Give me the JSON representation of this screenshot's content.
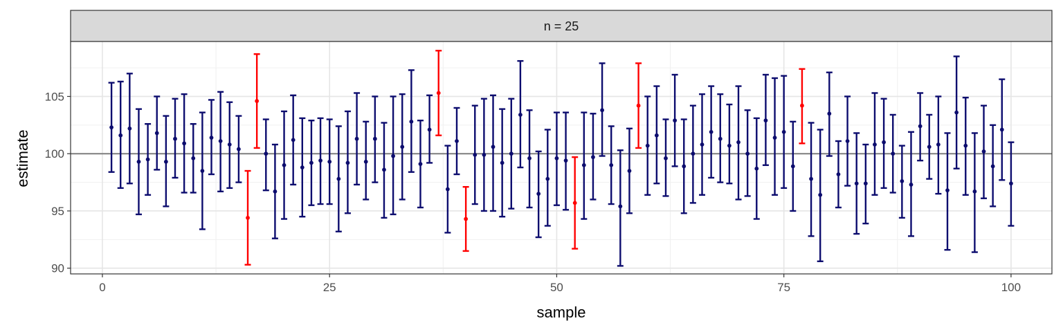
{
  "chart_data": {
    "type": "scatter",
    "subtype": "errorbar",
    "facet_label": "n = 25",
    "xlabel": "sample",
    "ylabel": "estimate",
    "xlim": [
      -3.5,
      104.5
    ],
    "ylim": [
      89.5,
      109.8
    ],
    "x_ticks": [
      0,
      25,
      50,
      75,
      100
    ],
    "y_ticks": [
      90,
      95,
      100,
      105
    ],
    "reference_line": 100,
    "grid": true,
    "colors": {
      "covers": "#0c0c6e",
      "misses": "#ff0000",
      "reference": "#7f7f7f"
    },
    "series": [
      {
        "name": "",
        "x": [
          1,
          2,
          3,
          4,
          5,
          6,
          7,
          8,
          9,
          10,
          11,
          12,
          13,
          14,
          15,
          16,
          17,
          18,
          19,
          20,
          21,
          22,
          23,
          24,
          25,
          26,
          27,
          28,
          29,
          30,
          31,
          32,
          33,
          34,
          35,
          36,
          37,
          38,
          39,
          40,
          41,
          42,
          43,
          44,
          45,
          46,
          47,
          48,
          49,
          50,
          51,
          52,
          53,
          54,
          55,
          56,
          57,
          58,
          59,
          60,
          61,
          62,
          63,
          64,
          65,
          66,
          67,
          68,
          69,
          70,
          71,
          72,
          73,
          74,
          75,
          76,
          77,
          78,
          79,
          80,
          81,
          82,
          83,
          84,
          85,
          86,
          87,
          88,
          89,
          90,
          91,
          92,
          93,
          94,
          95,
          96,
          97,
          98,
          99,
          100
        ],
        "estimate": [
          102.3,
          101.6,
          102.2,
          99.3,
          99.5,
          101.8,
          99.3,
          101.3,
          100.9,
          99.6,
          98.5,
          101.4,
          101.1,
          100.8,
          100.4,
          94.4,
          104.6,
          100.0,
          96.7,
          99.0,
          101.2,
          98.8,
          99.2,
          99.4,
          99.3,
          97.8,
          99.2,
          101.3,
          99.3,
          101.3,
          98.6,
          99.8,
          100.6,
          102.8,
          99.1,
          102.1,
          105.3,
          96.9,
          101.1,
          94.3,
          99.9,
          99.9,
          100.6,
          99.2,
          100.0,
          103.4,
          99.6,
          96.5,
          97.8,
          99.6,
          99.4,
          95.7,
          99.0,
          99.7,
          103.8,
          99.0,
          95.4,
          98.5,
          104.2,
          100.7,
          101.6,
          99.6,
          102.9,
          98.9,
          100.0,
          100.8,
          101.9,
          101.3,
          100.7,
          101.0,
          100.0,
          98.7,
          102.9,
          101.4,
          101.9,
          98.9,
          104.2,
          97.8,
          96.4,
          103.5,
          98.2,
          101.1,
          97.4,
          97.4,
          100.8,
          101.0,
          100.0,
          97.6,
          97.3,
          102.4,
          100.6,
          100.8,
          96.8,
          103.6,
          100.7,
          96.7,
          100.2,
          98.9,
          102.1,
          97.4
        ],
        "lower": [
          98.4,
          97.0,
          97.4,
          94.7,
          96.4,
          98.6,
          95.4,
          97.9,
          96.6,
          96.6,
          93.4,
          98.2,
          96.7,
          97.0,
          97.5,
          90.3,
          100.5,
          96.8,
          92.6,
          94.3,
          97.3,
          94.5,
          95.5,
          95.6,
          95.6,
          93.2,
          94.8,
          97.3,
          96.0,
          97.5,
          94.4,
          94.7,
          96.0,
          98.4,
          95.3,
          99.2,
          101.6,
          93.1,
          98.2,
          91.5,
          95.6,
          95.0,
          95.0,
          94.5,
          95.2,
          98.8,
          95.3,
          92.7,
          93.7,
          95.5,
          95.1,
          91.7,
          94.3,
          96.0,
          99.8,
          95.6,
          90.2,
          94.8,
          100.5,
          96.4,
          97.4,
          96.3,
          98.9,
          94.8,
          95.7,
          96.4,
          97.9,
          97.5,
          97.4,
          96.0,
          96.3,
          94.3,
          99.0,
          96.4,
          97.0,
          95.0,
          100.9,
          92.8,
          90.6,
          99.8,
          95.3,
          97.2,
          93.0,
          93.9,
          96.4,
          97.0,
          96.6,
          94.4,
          92.8,
          99.4,
          97.8,
          96.5,
          91.6,
          98.7,
          96.4,
          91.4,
          96.1,
          95.4,
          97.7,
          93.7
        ],
        "upper": [
          106.2,
          106.3,
          107.0,
          103.9,
          102.6,
          105.0,
          103.3,
          104.8,
          105.2,
          102.6,
          103.6,
          104.7,
          105.4,
          104.5,
          103.3,
          98.5,
          108.7,
          103.0,
          100.8,
          103.7,
          105.1,
          103.1,
          102.9,
          103.1,
          103.0,
          102.4,
          103.7,
          105.3,
          102.8,
          105.0,
          102.7,
          105.0,
          105.2,
          107.3,
          102.9,
          105.1,
          109.0,
          100.7,
          104.0,
          97.1,
          104.2,
          104.8,
          105.1,
          103.9,
          104.8,
          108.1,
          103.8,
          100.2,
          102.1,
          103.6,
          103.6,
          99.7,
          103.6,
          103.5,
          107.9,
          102.4,
          100.3,
          102.2,
          107.9,
          105.0,
          105.9,
          103.0,
          106.9,
          103.0,
          104.2,
          105.2,
          105.9,
          105.2,
          104.3,
          105.9,
          103.8,
          103.1,
          106.9,
          106.6,
          106.8,
          102.8,
          107.4,
          102.7,
          102.1,
          107.1,
          101.1,
          105.0,
          101.8,
          100.8,
          105.3,
          104.8,
          103.4,
          100.7,
          101.9,
          105.3,
          103.4,
          105.0,
          101.8,
          108.5,
          104.9,
          101.8,
          104.2,
          102.5,
          106.5,
          101.0
        ],
        "misses_true_value": [
          16,
          17,
          37,
          40,
          52,
          59,
          77
        ]
      }
    ]
  }
}
